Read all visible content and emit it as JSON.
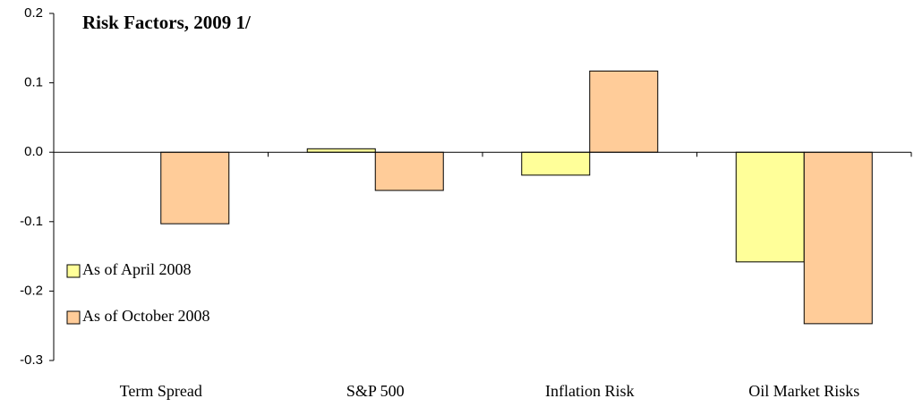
{
  "chart_data": {
    "type": "bar",
    "title": "Risk Factors, 2009 1/",
    "categories": [
      "Term Spread",
      "S&P 500",
      "Inflation Risk",
      "Oil Market Risks"
    ],
    "series": [
      {
        "name": "As of April 2008",
        "color": "#ffff99",
        "values": [
          0,
          0.005,
          -0.033,
          -0.158
        ]
      },
      {
        "name": "As of October 2008",
        "color": "#ffcc99",
        "values": [
          -0.103,
          -0.055,
          0.117,
          -0.247
        ]
      }
    ],
    "ylim": [
      -0.3,
      0.2
    ],
    "yticks": [
      -0.3,
      -0.2,
      -0.1,
      {
        "value": 0,
        "label": "0.0"
      },
      0.1,
      0.2
    ]
  }
}
